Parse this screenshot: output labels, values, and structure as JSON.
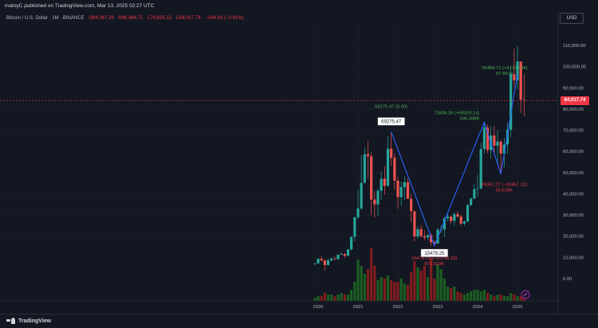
{
  "header": {
    "published": "matoyC published on TradingView.com, Mar 13, 2025 02:27 UTC"
  },
  "symbol": {
    "name": "Bitcoin / U.S. Dollar · 1M · BINANCE",
    "open": "O84,367.29",
    "high": "H96,484.71",
    "low": "L76,635.13",
    "close": "C84,017.74",
    "change": "−344.84 (−0.41%)"
  },
  "currency_button": "USD",
  "last_price": "84,017.74",
  "footer": {
    "brand": "TradingView"
  },
  "chart_data": {
    "type": "candlestick",
    "title": "",
    "xlabel": "",
    "ylabel": "",
    "ylim": [
      -20000,
      120000
    ],
    "y_ticks": [
      0,
      10000,
      20000,
      30000,
      40000,
      50000,
      60000,
      70000,
      80000,
      90000,
      100000,
      110000
    ],
    "y_tick_labels": [
      "0.00",
      "10,000.00",
      "20,000.00",
      "30,000.00",
      "40,000.00",
      "50,000.00",
      "60,000.00",
      "70,000.00",
      "80,000.00",
      "90,000.00",
      "100,000.00",
      "110,000.00"
    ],
    "x_ticks": [
      2020,
      2021,
      2022,
      2023,
      2024,
      2025
    ],
    "x_tick_labels": [
      "2020",
      "2021",
      "2022",
      "2023",
      "2024",
      "2025"
    ],
    "colors": {
      "up": "#26a69a",
      "down": "#ef5350",
      "line": "#2962ff",
      "vol_up": "#1b5e20",
      "vol_down": "#7f1d1d"
    },
    "candles": [
      {
        "t": 2019.917,
        "o": 7200,
        "h": 7500,
        "l": 6400,
        "c": 7200
      },
      {
        "t": 2020.0,
        "o": 7200,
        "h": 9600,
        "l": 6900,
        "c": 9350
      },
      {
        "t": 2020.083,
        "o": 9350,
        "h": 10500,
        "l": 8400,
        "c": 8550
      },
      {
        "t": 2020.167,
        "o": 8550,
        "h": 9200,
        "l": 3800,
        "c": 6400
      },
      {
        "t": 2020.25,
        "o": 6400,
        "h": 9450,
        "l": 6200,
        "c": 8650
      },
      {
        "t": 2020.333,
        "o": 8650,
        "h": 10050,
        "l": 8100,
        "c": 9450
      },
      {
        "t": 2020.417,
        "o": 9450,
        "h": 10400,
        "l": 8900,
        "c": 9150
      },
      {
        "t": 2020.5,
        "o": 9150,
        "h": 11450,
        "l": 8950,
        "c": 11350
      },
      {
        "t": 2020.583,
        "o": 11350,
        "h": 12450,
        "l": 11100,
        "c": 11650
      },
      {
        "t": 2020.667,
        "o": 11650,
        "h": 12050,
        "l": 9850,
        "c": 10800
      },
      {
        "t": 2020.75,
        "o": 10800,
        "h": 14100,
        "l": 10400,
        "c": 13800
      },
      {
        "t": 2020.833,
        "o": 13800,
        "h": 19900,
        "l": 13200,
        "c": 19700
      },
      {
        "t": 2020.917,
        "o": 19700,
        "h": 29300,
        "l": 17600,
        "c": 28900
      },
      {
        "t": 2021.0,
        "o": 28900,
        "h": 41950,
        "l": 28100,
        "c": 33100
      },
      {
        "t": 2021.083,
        "o": 33100,
        "h": 58350,
        "l": 32300,
        "c": 45150
      },
      {
        "t": 2021.167,
        "o": 45150,
        "h": 61800,
        "l": 45000,
        "c": 58750
      },
      {
        "t": 2021.25,
        "o": 58750,
        "h": 64850,
        "l": 47050,
        "c": 57700
      },
      {
        "t": 2021.333,
        "o": 57700,
        "h": 59500,
        "l": 30000,
        "c": 37300
      },
      {
        "t": 2021.417,
        "o": 37300,
        "h": 41300,
        "l": 28800,
        "c": 35050
      },
      {
        "t": 2021.5,
        "o": 35050,
        "h": 42400,
        "l": 29300,
        "c": 41450
      },
      {
        "t": 2021.583,
        "o": 41450,
        "h": 50500,
        "l": 37300,
        "c": 47100
      },
      {
        "t": 2021.667,
        "o": 47100,
        "h": 52900,
        "l": 39600,
        "c": 43800
      },
      {
        "t": 2021.75,
        "o": 43800,
        "h": 66950,
        "l": 43300,
        "c": 61300
      },
      {
        "t": 2021.833,
        "o": 61300,
        "h": 69000,
        "l": 53250,
        "c": 57000
      },
      {
        "t": 2021.917,
        "o": 57000,
        "h": 59050,
        "l": 42000,
        "c": 46200
      },
      {
        "t": 2022.0,
        "o": 46200,
        "h": 47950,
        "l": 32900,
        "c": 38450
      },
      {
        "t": 2022.083,
        "o": 38450,
        "h": 45800,
        "l": 34300,
        "c": 43150
      },
      {
        "t": 2022.167,
        "o": 43150,
        "h": 48200,
        "l": 37150,
        "c": 45500
      },
      {
        "t": 2022.25,
        "o": 45500,
        "h": 47450,
        "l": 37550,
        "c": 37650
      },
      {
        "t": 2022.333,
        "o": 37650,
        "h": 40000,
        "l": 26700,
        "c": 31800
      },
      {
        "t": 2022.417,
        "o": 31800,
        "h": 31950,
        "l": 17600,
        "c": 19900
      },
      {
        "t": 2022.5,
        "o": 19900,
        "h": 24650,
        "l": 18800,
        "c": 23300
      },
      {
        "t": 2022.583,
        "o": 23300,
        "h": 25200,
        "l": 19500,
        "c": 20050
      },
      {
        "t": 2022.667,
        "o": 20050,
        "h": 22800,
        "l": 18150,
        "c": 19400
      },
      {
        "t": 2022.75,
        "o": 19400,
        "h": 21100,
        "l": 18200,
        "c": 20500
      },
      {
        "t": 2022.833,
        "o": 20500,
        "h": 21450,
        "l": 15500,
        "c": 17150
      },
      {
        "t": 2022.917,
        "o": 17150,
        "h": 18400,
        "l": 16250,
        "c": 16550
      },
      {
        "t": 2023.0,
        "o": 16550,
        "h": 23950,
        "l": 16500,
        "c": 23100
      },
      {
        "t": 2023.083,
        "o": 23100,
        "h": 25250,
        "l": 21350,
        "c": 23150
      },
      {
        "t": 2023.167,
        "o": 23150,
        "h": 29200,
        "l": 19550,
        "c": 28450
      },
      {
        "t": 2023.25,
        "o": 28450,
        "h": 31000,
        "l": 26950,
        "c": 29250
      },
      {
        "t": 2023.333,
        "o": 29250,
        "h": 29800,
        "l": 25800,
        "c": 27200
      },
      {
        "t": 2023.417,
        "o": 27200,
        "h": 31400,
        "l": 24800,
        "c": 30450
      },
      {
        "t": 2023.5,
        "o": 30450,
        "h": 31800,
        "l": 28850,
        "c": 29250
      },
      {
        "t": 2023.583,
        "o": 29250,
        "h": 30200,
        "l": 25150,
        "c": 25950
      },
      {
        "t": 2023.667,
        "o": 25950,
        "h": 27500,
        "l": 24900,
        "c": 26950
      },
      {
        "t": 2023.75,
        "o": 26950,
        "h": 35200,
        "l": 26550,
        "c": 34650
      },
      {
        "t": 2023.833,
        "o": 34650,
        "h": 38450,
        "l": 34100,
        "c": 37700
      },
      {
        "t": 2023.917,
        "o": 37700,
        "h": 44750,
        "l": 37600,
        "c": 42250
      },
      {
        "t": 2024.0,
        "o": 42250,
        "h": 48950,
        "l": 38550,
        "c": 42550
      },
      {
        "t": 2024.083,
        "o": 42550,
        "h": 64000,
        "l": 41900,
        "c": 61150
      },
      {
        "t": 2024.167,
        "o": 61150,
        "h": 73800,
        "l": 59000,
        "c": 71300
      },
      {
        "t": 2024.25,
        "o": 71300,
        "h": 72800,
        "l": 59200,
        "c": 60650
      },
      {
        "t": 2024.333,
        "o": 60650,
        "h": 71950,
        "l": 56550,
        "c": 67500
      },
      {
        "t": 2024.417,
        "o": 67500,
        "h": 71950,
        "l": 58400,
        "c": 62700
      },
      {
        "t": 2024.5,
        "o": 62700,
        "h": 70000,
        "l": 53500,
        "c": 64600
      },
      {
        "t": 2024.583,
        "o": 64600,
        "h": 65600,
        "l": 49050,
        "c": 58950
      },
      {
        "t": 2024.667,
        "o": 58950,
        "h": 66500,
        "l": 52550,
        "c": 63300
      },
      {
        "t": 2024.75,
        "o": 63300,
        "h": 73600,
        "l": 58850,
        "c": 70200
      },
      {
        "t": 2024.833,
        "o": 70200,
        "h": 99600,
        "l": 66800,
        "c": 96400
      },
      {
        "t": 2024.917,
        "o": 96400,
        "h": 108350,
        "l": 90500,
        "c": 93550
      },
      {
        "t": 2025.0,
        "o": 93550,
        "h": 109600,
        "l": 89250,
        "c": 102400
      },
      {
        "t": 2025.083,
        "o": 102400,
        "h": 102500,
        "l": 78200,
        "c": 84350
      },
      {
        "t": 2025.167,
        "o": 84350,
        "h": 96500,
        "l": 76600,
        "c": 84000
      }
    ],
    "volumes": [
      {
        "t": 2019.917,
        "v": 2,
        "up": true
      },
      {
        "t": 2020.0,
        "v": 3,
        "up": true
      },
      {
        "t": 2020.083,
        "v": 3,
        "up": false
      },
      {
        "t": 2020.167,
        "v": 5,
        "up": false
      },
      {
        "t": 2020.25,
        "v": 4,
        "up": true
      },
      {
        "t": 2020.333,
        "v": 4,
        "up": true
      },
      {
        "t": 2020.417,
        "v": 3,
        "up": false
      },
      {
        "t": 2020.5,
        "v": 4,
        "up": true
      },
      {
        "t": 2020.583,
        "v": 5,
        "up": true
      },
      {
        "t": 2020.667,
        "v": 4,
        "up": false
      },
      {
        "t": 2020.75,
        "v": 4,
        "up": true
      },
      {
        "t": 2020.833,
        "v": 7,
        "up": true
      },
      {
        "t": 2020.917,
        "v": 12,
        "up": true
      },
      {
        "t": 2021.0,
        "v": 26,
        "up": true
      },
      {
        "t": 2021.083,
        "v": 22,
        "up": true
      },
      {
        "t": 2021.167,
        "v": 17,
        "up": true
      },
      {
        "t": 2021.25,
        "v": 20,
        "up": false
      },
      {
        "t": 2021.333,
        "v": 33,
        "up": false
      },
      {
        "t": 2021.417,
        "v": 22,
        "up": false
      },
      {
        "t": 2021.5,
        "v": 13,
        "up": true
      },
      {
        "t": 2021.583,
        "v": 15,
        "up": true
      },
      {
        "t": 2021.667,
        "v": 14,
        "up": false
      },
      {
        "t": 2021.75,
        "v": 16,
        "up": true
      },
      {
        "t": 2021.833,
        "v": 13,
        "up": false
      },
      {
        "t": 2021.917,
        "v": 12,
        "up": false
      },
      {
        "t": 2022.0,
        "v": 12,
        "up": false
      },
      {
        "t": 2022.083,
        "v": 14,
        "up": true
      },
      {
        "t": 2022.167,
        "v": 11,
        "up": true
      },
      {
        "t": 2022.25,
        "v": 10,
        "up": false
      },
      {
        "t": 2022.333,
        "v": 18,
        "up": false
      },
      {
        "t": 2022.417,
        "v": 25,
        "up": false
      },
      {
        "t": 2022.5,
        "v": 21,
        "up": true
      },
      {
        "t": 2022.583,
        "v": 19,
        "up": false
      },
      {
        "t": 2022.667,
        "v": 22,
        "up": false
      },
      {
        "t": 2022.75,
        "v": 15,
        "up": true
      },
      {
        "t": 2022.833,
        "v": 27,
        "up": false
      },
      {
        "t": 2022.917,
        "v": 14,
        "up": false
      },
      {
        "t": 2023.0,
        "v": 23,
        "up": true
      },
      {
        "t": 2023.083,
        "v": 20,
        "up": true
      },
      {
        "t": 2023.167,
        "v": 14,
        "up": true
      },
      {
        "t": 2023.25,
        "v": 9,
        "up": true
      },
      {
        "t": 2023.333,
        "v": 8,
        "up": false
      },
      {
        "t": 2023.417,
        "v": 9,
        "up": true
      },
      {
        "t": 2023.5,
        "v": 6,
        "up": false
      },
      {
        "t": 2023.583,
        "v": 5,
        "up": false
      },
      {
        "t": 2023.667,
        "v": 4,
        "up": true
      },
      {
        "t": 2023.75,
        "v": 5,
        "up": true
      },
      {
        "t": 2023.833,
        "v": 6,
        "up": true
      },
      {
        "t": 2023.917,
        "v": 7,
        "up": true
      },
      {
        "t": 2024.0,
        "v": 7,
        "up": true
      },
      {
        "t": 2024.083,
        "v": 6,
        "up": true
      },
      {
        "t": 2024.167,
        "v": 7,
        "up": true
      },
      {
        "t": 2024.25,
        "v": 5,
        "up": false
      },
      {
        "t": 2024.333,
        "v": 4,
        "up": true
      },
      {
        "t": 2024.417,
        "v": 3,
        "up": false
      },
      {
        "t": 2024.5,
        "v": 4,
        "up": true
      },
      {
        "t": 2024.583,
        "v": 4,
        "up": false
      },
      {
        "t": 2024.667,
        "v": 3,
        "up": true
      },
      {
        "t": 2024.75,
        "v": 3,
        "up": true
      },
      {
        "t": 2024.833,
        "v": 5,
        "up": true
      },
      {
        "t": 2024.917,
        "v": 4,
        "up": false
      },
      {
        "t": 2025.0,
        "v": 3,
        "up": true
      },
      {
        "t": 2025.083,
        "v": 3,
        "up": false
      },
      {
        "t": 2025.167,
        "v": 2,
        "up": false
      }
    ],
    "zigzag": [
      {
        "t": 2021.833,
        "p": 69275.47
      },
      {
        "t": 2022.917,
        "p": 15479.25
      },
      {
        "t": 2024.167,
        "p": 73808.39
      },
      {
        "t": 2024.583,
        "p": 49351.27
      },
      {
        "t": 2025.0,
        "p": 96484.71
      }
    ],
    "pivot_boxes": [
      {
        "t": 2021.833,
        "p": 69275.47,
        "text": "69275.47",
        "pos": "above"
      },
      {
        "t": 2022.917,
        "p": 15479.25,
        "text": "15479.25",
        "pos": "below"
      }
    ],
    "annotations": [
      {
        "t": 2021.833,
        "p": 69275.47,
        "line1": "69275.47 (0.00)",
        "line2": "",
        "color": "#4caf50",
        "pos": "above"
      },
      {
        "t": 2022.917,
        "p": 15479.25,
        "line1": "15479.25 (−53796.22)",
        "line2": "872.629K",
        "color": "#f23645",
        "pos": "below"
      },
      {
        "t": 2024.167,
        "p": 73808.39,
        "line1": "73808.39 (+58329.14)",
        "line2": "536.498K",
        "color": "#4caf50",
        "pos": "left"
      },
      {
        "t": 2024.583,
        "p": 49351.27,
        "line1": "49351.27 (−24457.12)",
        "line2": "33.618K",
        "color": "#f23645",
        "pos": "below"
      },
      {
        "t": 2025.0,
        "p": 96484.71,
        "line1": "96484.71 (+47133.44)",
        "line2": "67.861K",
        "color": "#4caf50",
        "pos": "above"
      }
    ],
    "last_price": 84017.74
  }
}
